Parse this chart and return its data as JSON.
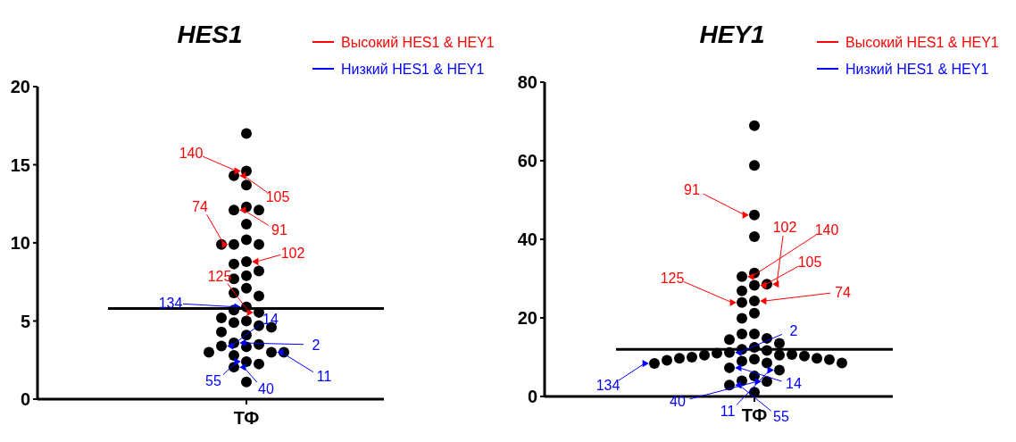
{
  "chart_data": [
    {
      "type": "scatter",
      "title": "HES1",
      "categories": [
        "ТФ"
      ],
      "ylim": [
        0,
        20
      ],
      "yticks": [
        0,
        5,
        10,
        15,
        20
      ],
      "grid": false,
      "legend": "top right",
      "marker": "circle",
      "ref_lines": [
        {
          "axis": "y",
          "value": 5.8,
          "color": "#000000"
        }
      ],
      "series": [
        {
          "color": "#000000",
          "x": [
            "ТФ",
            "ТФ",
            "ТФ",
            "ТФ",
            "ТФ",
            "ТФ",
            "ТФ",
            "ТФ",
            "ТФ",
            "ТФ",
            "ТФ",
            "ТФ",
            "ТФ",
            "ТФ",
            "ТФ",
            "ТФ",
            "ТФ",
            "ТФ",
            "ТФ",
            "ТФ",
            "ТФ",
            "ТФ",
            "ТФ",
            "ТФ",
            "ТФ",
            "ТФ",
            "ТФ",
            "ТФ",
            "ТФ",
            "ТФ",
            "ТФ",
            "ТФ",
            "ТФ",
            "ТФ",
            "ТФ",
            "ТФ",
            "ТФ",
            "ТФ",
            "ТФ",
            "ТФ",
            "ТФ",
            "ТФ"
          ],
          "values": [
            17.0,
            14.6,
            14.3,
            13.7,
            12.3,
            12.1,
            12.1,
            11.2,
            10.2,
            9.9,
            9.9,
            9.9,
            8.8,
            8.65,
            8.2,
            7.9,
            7.7,
            7.1,
            6.8,
            6.6,
            5.9,
            5.7,
            5.55,
            5.2,
            5.0,
            4.9,
            4.7,
            4.6,
            4.3,
            4.1,
            3.6,
            3.5,
            3.4,
            3.35,
            3.0,
            3.0,
            3.0,
            2.8,
            2.4,
            2.25,
            2.05,
            1.1
          ]
        },
        {
          "name": "Высокий HES1 & HEY1",
          "color": "#ff0000",
          "marker": "triangle",
          "x": [
            "ТФ",
            "ТФ",
            "ТФ",
            "ТФ",
            "ТФ",
            "ТФ"
          ],
          "values": [
            14.6,
            14.3,
            12.1,
            9.9,
            8.8,
            5.55
          ]
        },
        {
          "name": "Низкий HES1 & HEY1",
          "color": "#0000ff",
          "marker": "triangle",
          "x": [
            "ТФ",
            "ТФ",
            "ТФ",
            "ТФ",
            "ТФ",
            "ТФ"
          ],
          "values": [
            5.9,
            3.4,
            3.6,
            3.0,
            2.4,
            2.05
          ]
        }
      ],
      "annotations": [
        "140",
        "105",
        "91",
        "74",
        "102",
        "125",
        "134",
        "14",
        "2",
        "11",
        "55",
        "40"
      ]
    },
    {
      "type": "scatter",
      "title": "HEY1",
      "categories": [
        "ТФ"
      ],
      "ylim": [
        0,
        80
      ],
      "yticks": [
        0,
        20,
        40,
        60,
        80
      ],
      "grid": false,
      "legend": "top right",
      "marker": "circle",
      "ref_lines": [
        {
          "axis": "y",
          "value": 12.0,
          "color": "#000000"
        }
      ],
      "series": [
        {
          "color": "#000000",
          "x": [
            "ТФ",
            "ТФ",
            "ТФ",
            "ТФ",
            "ТФ",
            "ТФ",
            "ТФ",
            "ТФ",
            "ТФ",
            "ТФ",
            "ТФ",
            "ТФ",
            "ТФ",
            "ТФ",
            "ТФ",
            "ТФ",
            "ТФ",
            "ТФ",
            "ТФ",
            "ТФ",
            "ТФ",
            "ТФ",
            "ТФ",
            "ТФ",
            "ТФ",
            "ТФ",
            "ТФ",
            "ТФ",
            "ТФ",
            "ТФ",
            "ТФ",
            "ТФ",
            "ТФ",
            "ТФ",
            "ТФ",
            "ТФ",
            "ТФ",
            "ТФ",
            "ТФ",
            "ТФ",
            "ТФ",
            "ТФ",
            "ТФ",
            "ТФ"
          ],
          "values": [
            68.9,
            58.8,
            46.2,
            40.7,
            31.4,
            30.5,
            28.6,
            28.3,
            26.9,
            24.3,
            23.9,
            21.2,
            19.9,
            15.9,
            15.9,
            14.8,
            14.5,
            13.5,
            12.5,
            12.0,
            11.7,
            11.0,
            10.7,
            10.5,
            10.5,
            10.3,
            10.0,
            9.7,
            9.7,
            9.2,
            9.0,
            8.5,
            8.5,
            8.4,
            7.3,
            6.7,
            5.2,
            4.0,
            3.8,
            2.9,
            1.1,
            11.2,
            9.5,
            9.4
          ]
        },
        {
          "name": "Высокий HES1 & HEY1",
          "color": "#ff0000",
          "marker": "triangle",
          "x": [
            "ТФ",
            "ТФ",
            "ТФ",
            "ТФ",
            "ТФ",
            "ТФ"
          ],
          "values": [
            46.2,
            28.6,
            30.5,
            28.3,
            24.3,
            23.9
          ]
        },
        {
          "name": "Низкий HES1 & HEY1",
          "color": "#0000ff",
          "marker": "triangle",
          "x": [
            "ТФ",
            "ТФ",
            "ТФ",
            "ТФ",
            "ТФ",
            "ТФ"
          ],
          "values": [
            11.2,
            8.4,
            7.3,
            6.7,
            3.8,
            2.9
          ]
        }
      ],
      "annotations": [
        "91",
        "102",
        "140",
        "105",
        "74",
        "125",
        "2",
        "134",
        "14",
        "11",
        "40",
        "55"
      ]
    }
  ]
}
